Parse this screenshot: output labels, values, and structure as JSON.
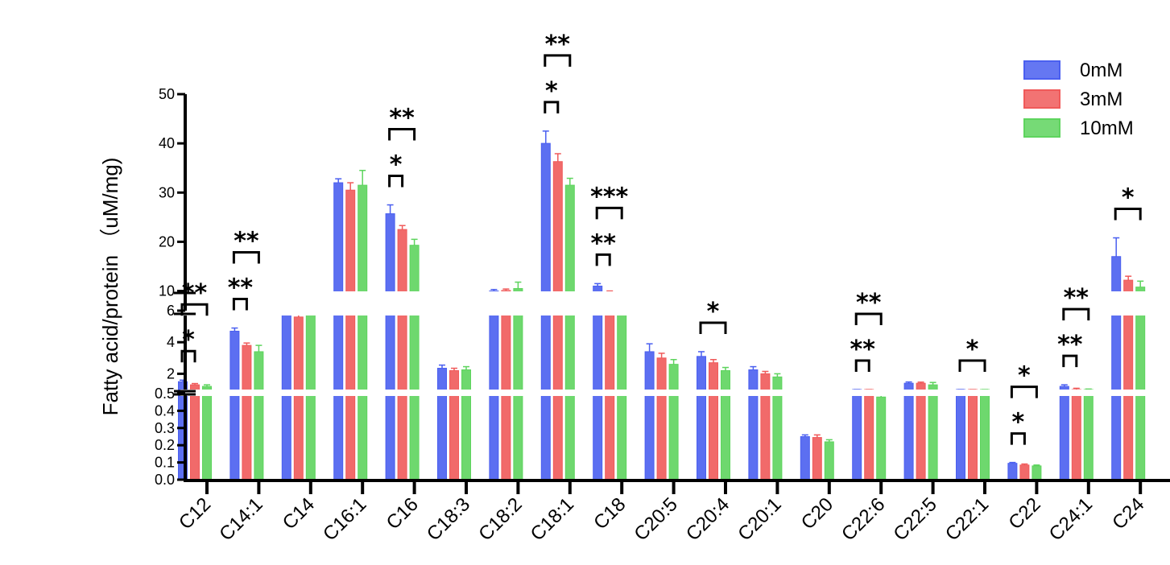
{
  "chart_data": {
    "type": "bar",
    "ylabel": "Fatty acid/protein  （uM/mg)",
    "categories": [
      "C12",
      "C14:1",
      "C14",
      "C16:1",
      "C16",
      "C18:3",
      "C18:2",
      "C18:1",
      "C18",
      "C20:5",
      "C20:4",
      "C20:1",
      "C20",
      "C22:6",
      "C22:5",
      "C22:1",
      "C22",
      "C24:1",
      "C24"
    ],
    "series": [
      {
        "name": "0mM",
        "color": "#4a5ff0",
        "values": [
          1.5,
          4.7,
          6.8,
          32.0,
          25.7,
          2.35,
          10.0,
          40.0,
          11.0,
          3.4,
          3.1,
          2.25,
          0.25,
          0.9,
          1.4,
          0.85,
          0.095,
          1.2,
          17.0
        ],
        "errors": [
          0.1,
          0.2,
          0.2,
          0.8,
          1.8,
          0.2,
          0.3,
          2.5,
          0.5,
          0.5,
          0.3,
          0.2,
          0.01,
          0.05,
          0.08,
          0.06,
          0.005,
          0.1,
          3.8
        ]
      },
      {
        "name": "3mM",
        "color": "#f05a5a",
        "values": [
          1.3,
          3.8,
          5.6,
          30.5,
          22.5,
          2.2,
          10.1,
          36.3,
          9.7,
          3.0,
          2.7,
          2.0,
          0.245,
          0.75,
          1.4,
          0.8,
          0.085,
          1.0,
          12.2
        ],
        "errors": [
          0.08,
          0.15,
          0.5,
          1.5,
          0.8,
          0.15,
          0.3,
          1.6,
          0.3,
          0.3,
          0.2,
          0.15,
          0.015,
          0.04,
          0.07,
          0.05,
          0.006,
          0.08,
          0.8
        ]
      },
      {
        "name": "10mM",
        "color": "#5ed45e",
        "values": [
          1.2,
          3.4,
          6.0,
          31.5,
          19.3,
          2.25,
          10.5,
          31.5,
          8.5,
          2.6,
          2.2,
          1.8,
          0.22,
          0.48,
          1.3,
          0.75,
          0.08,
          0.95,
          10.8
        ],
        "errors": [
          0.1,
          0.4,
          0.7,
          3.0,
          1.2,
          0.2,
          1.3,
          1.4,
          0.3,
          0.3,
          0.2,
          0.2,
          0.012,
          0.02,
          0.15,
          0.05,
          0.005,
          0.08,
          1.2
        ]
      }
    ],
    "y_segments": [
      {
        "range": [
          0,
          0.5
        ],
        "ticks": [
          "0.0",
          "0.1",
          "0.2",
          "0.3",
          "0.4",
          "0.5"
        ]
      },
      {
        "range": [
          1,
          6
        ],
        "ticks": [
          "2",
          "4",
          "6"
        ]
      },
      {
        "range": [
          6,
          50
        ],
        "ticks": [
          "10",
          "20",
          "30",
          "40",
          "50"
        ]
      }
    ],
    "legend": {
      "position": "top-right"
    },
    "significance": [
      {
        "cat": 0,
        "from": 0,
        "to": 1,
        "label": "*"
      },
      {
        "cat": 0,
        "from": 0,
        "to": 2,
        "label": "**"
      },
      {
        "cat": 1,
        "from": 0,
        "to": 1,
        "label": "**"
      },
      {
        "cat": 1,
        "from": 0,
        "to": 2,
        "label": "**"
      },
      {
        "cat": 4,
        "from": 0,
        "to": 1,
        "label": "*"
      },
      {
        "cat": 4,
        "from": 0,
        "to": 2,
        "label": "**"
      },
      {
        "cat": 7,
        "from": 0,
        "to": 1,
        "label": "*"
      },
      {
        "cat": 7,
        "from": 0,
        "to": 2,
        "label": "**"
      },
      {
        "cat": 8,
        "from": 0,
        "to": 1,
        "label": "**"
      },
      {
        "cat": 8,
        "from": 0,
        "to": 2,
        "label": "***"
      },
      {
        "cat": 10,
        "from": 0,
        "to": 2,
        "label": "*"
      },
      {
        "cat": 13,
        "from": 0,
        "to": 1,
        "label": "**"
      },
      {
        "cat": 13,
        "from": 0,
        "to": 2,
        "label": "**"
      },
      {
        "cat": 15,
        "from": 0,
        "to": 2,
        "label": "*"
      },
      {
        "cat": 16,
        "from": 0,
        "to": 1,
        "label": "*"
      },
      {
        "cat": 16,
        "from": 0,
        "to": 2,
        "label": "*"
      },
      {
        "cat": 17,
        "from": 0,
        "to": 1,
        "label": "**"
      },
      {
        "cat": 17,
        "from": 0,
        "to": 2,
        "label": "**"
      },
      {
        "cat": 18,
        "from": 0,
        "to": 2,
        "label": "*"
      }
    ]
  }
}
